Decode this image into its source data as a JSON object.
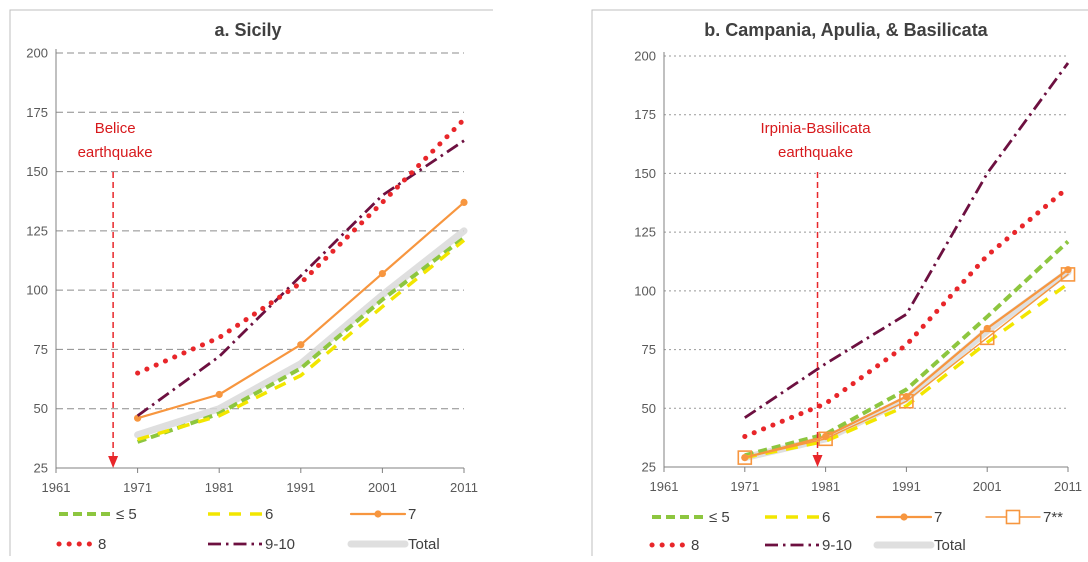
{
  "charts": [
    {
      "id": "a",
      "title": "a. Sicily",
      "annotation": [
        "Belice",
        "earthquake"
      ],
      "event_x": 1968,
      "legend_rows": [
        [
          "le5",
          "s6",
          "s7"
        ],
        [
          "s8",
          "s910",
          "total"
        ]
      ]
    },
    {
      "id": "b",
      "title": "b. Campania, Apulia, & Basilicata",
      "annotation": [
        "Irpinia-Basilicata",
        "earthquake"
      ],
      "event_x": 1980,
      "legend_rows": [
        [
          "le5",
          "s6",
          "s7",
          "s7ss"
        ],
        [
          "s8",
          "s910",
          "total"
        ]
      ]
    }
  ],
  "chart_data": [
    {
      "type": "line",
      "title": "a. Sicily",
      "x_ticks": [
        1961,
        1971,
        1981,
        1991,
        2001,
        2011
      ],
      "y_ticks": [
        25,
        50,
        75,
        100,
        125,
        150,
        175,
        200
      ],
      "xlim": [
        1961,
        2011
      ],
      "ylim": [
        25,
        200
      ],
      "grid": "horizontal dashed",
      "legend_position": "bottom",
      "series": [
        {
          "key": "le5",
          "name": "≤ 5",
          "color": "#8dc63f",
          "x": [
            1971,
            1981,
            1991,
            2001,
            2011
          ],
          "values": [
            36,
            48,
            67,
            96,
            122
          ]
        },
        {
          "key": "s6",
          "name": "6",
          "color": "#f2e600",
          "x": [
            1971,
            1981,
            1991,
            2001,
            2011
          ],
          "values": [
            37,
            47,
            64,
            93,
            121
          ]
        },
        {
          "key": "s7",
          "name": "7",
          "color": "#f7963f",
          "x": [
            1971,
            1981,
            1991,
            2001,
            2011
          ],
          "values": [
            46,
            56,
            77,
            107,
            137
          ]
        },
        {
          "key": "s8",
          "name": "8",
          "color": "#e8262a",
          "x": [
            1971,
            1981,
            1991,
            2001,
            2011
          ],
          "values": [
            65,
            80,
            103,
            137,
            172
          ]
        },
        {
          "key": "s910",
          "name": "9-10",
          "color": "#6d1040",
          "x": [
            1971,
            1981,
            1991,
            2001,
            2011
          ],
          "values": [
            47,
            72,
            106,
            140,
            163
          ]
        },
        {
          "key": "total",
          "name": "Total",
          "color": "#d9d9d9",
          "x": [
            1971,
            1981,
            1991,
            2001,
            2011
          ],
          "values": [
            39,
            50,
            69,
            98,
            125
          ]
        }
      ]
    },
    {
      "type": "line",
      "title": "b. Campania, Apulia, & Basilicata",
      "x_ticks": [
        1961,
        1971,
        1981,
        1991,
        2001,
        2011
      ],
      "y_ticks": [
        25,
        50,
        75,
        100,
        125,
        150,
        175,
        200
      ],
      "xlim": [
        1961,
        2011
      ],
      "ylim": [
        25,
        200
      ],
      "grid": "horizontal dotted",
      "legend_position": "bottom",
      "series": [
        {
          "key": "le5",
          "name": "≤ 5",
          "color": "#8dc63f",
          "x": [
            1971,
            1981,
            1991,
            2001,
            2011
          ],
          "values": [
            30,
            39,
            58,
            89,
            121
          ]
        },
        {
          "key": "s6",
          "name": "6",
          "color": "#f2e600",
          "x": [
            1971,
            1981,
            1991,
            2001,
            2011
          ],
          "values": [
            29,
            36,
            51,
            78,
            103
          ]
        },
        {
          "key": "s7",
          "name": "7",
          "color": "#f7963f",
          "x": [
            1971,
            1981,
            1991,
            2001,
            2011
          ],
          "values": [
            29,
            38,
            55,
            84,
            109
          ]
        },
        {
          "key": "s7ss",
          "name": "7**",
          "color": "#f7963f",
          "x": [
            1971,
            1981,
            1991,
            2001,
            2011
          ],
          "values": [
            29,
            37,
            53,
            80,
            107
          ]
        },
        {
          "key": "s8",
          "name": "8",
          "color": "#e8262a",
          "x": [
            1971,
            1981,
            1991,
            2001,
            2011
          ],
          "values": [
            38,
            52,
            77,
            115,
            144
          ]
        },
        {
          "key": "s910",
          "name": "9-10",
          "color": "#6d1040",
          "x": [
            1971,
            1981,
            1991,
            2001,
            2011
          ],
          "values": [
            46,
            69,
            90,
            150,
            197
          ]
        },
        {
          "key": "total",
          "name": "Total",
          "color": "#d9d9d9",
          "x": [
            1971,
            1981,
            1991,
            2001,
            2011
          ],
          "values": [
            29,
            37,
            54,
            83,
            108
          ]
        }
      ]
    }
  ]
}
